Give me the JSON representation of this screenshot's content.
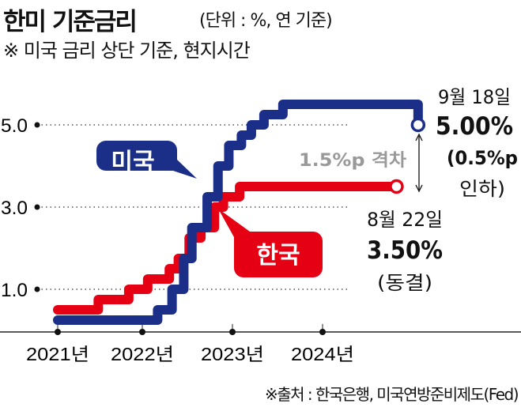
{
  "header": {
    "title": "한미 기준금리",
    "unit": "(단위 : %, 연 기준)",
    "note": "※ 미국 금리 상단 기준, 현지시간"
  },
  "footer": {
    "source": "※출처 : 한국은행, 미국연방준비제도(Fed)"
  },
  "colors": {
    "us": "#1b2f88",
    "korea": "#e60014",
    "gap": "#999999"
  },
  "chart_data": {
    "type": "line",
    "title": "한미 기준금리",
    "ylabel": "%",
    "ylim": [
      0,
      5.5
    ],
    "yticks": [
      {
        "v": 5.0,
        "label": "5.0"
      },
      {
        "v": 3.0,
        "label": "3.0"
      },
      {
        "v": 1.0,
        "label": "1.0"
      }
    ],
    "xticks": [
      {
        "v": 2021,
        "label": "2021년"
      },
      {
        "v": 2022,
        "label": "2022년"
      },
      {
        "v": 2023,
        "label": "2023년"
      },
      {
        "v": 2024,
        "label": "2024년"
      }
    ],
    "grid": "dotted horizontal",
    "series": [
      {
        "name": "미국",
        "key": "us",
        "step": true,
        "points": [
          [
            2021,
            0.25
          ],
          [
            2022.17,
            0.5
          ],
          [
            2022.33,
            1.0
          ],
          [
            2022.46,
            1.75
          ],
          [
            2022.55,
            2.5
          ],
          [
            2022.72,
            3.25
          ],
          [
            2022.84,
            4.0
          ],
          [
            2022.96,
            4.5
          ],
          [
            2023.1,
            4.75
          ],
          [
            2023.21,
            5.0
          ],
          [
            2023.35,
            5.25
          ],
          [
            2023.56,
            5.5
          ],
          [
            2025.06,
            5.0
          ]
        ]
      },
      {
        "name": "한국",
        "key": "korea",
        "step": true,
        "points": [
          [
            2021,
            0.5
          ],
          [
            2021.48,
            0.75
          ],
          [
            2021.84,
            1.0
          ],
          [
            2022.06,
            1.25
          ],
          [
            2022.3,
            1.5
          ],
          [
            2022.4,
            1.75
          ],
          [
            2022.52,
            2.25
          ],
          [
            2022.65,
            2.5
          ],
          [
            2022.8,
            3.0
          ],
          [
            2022.9,
            3.25
          ],
          [
            2023.08,
            3.5
          ],
          [
            2024.82,
            3.5
          ]
        ]
      }
    ],
    "annotations": {
      "us_date": "9월 18일",
      "us_value": "5.00%",
      "us_change": "(0.5%p",
      "us_change2": "인하)",
      "kr_date": "8월 22일",
      "kr_value": "3.50%",
      "kr_change": "(동결)",
      "gap": "1.5%p 격차",
      "us_label": "미국",
      "kr_label": "한국"
    }
  }
}
